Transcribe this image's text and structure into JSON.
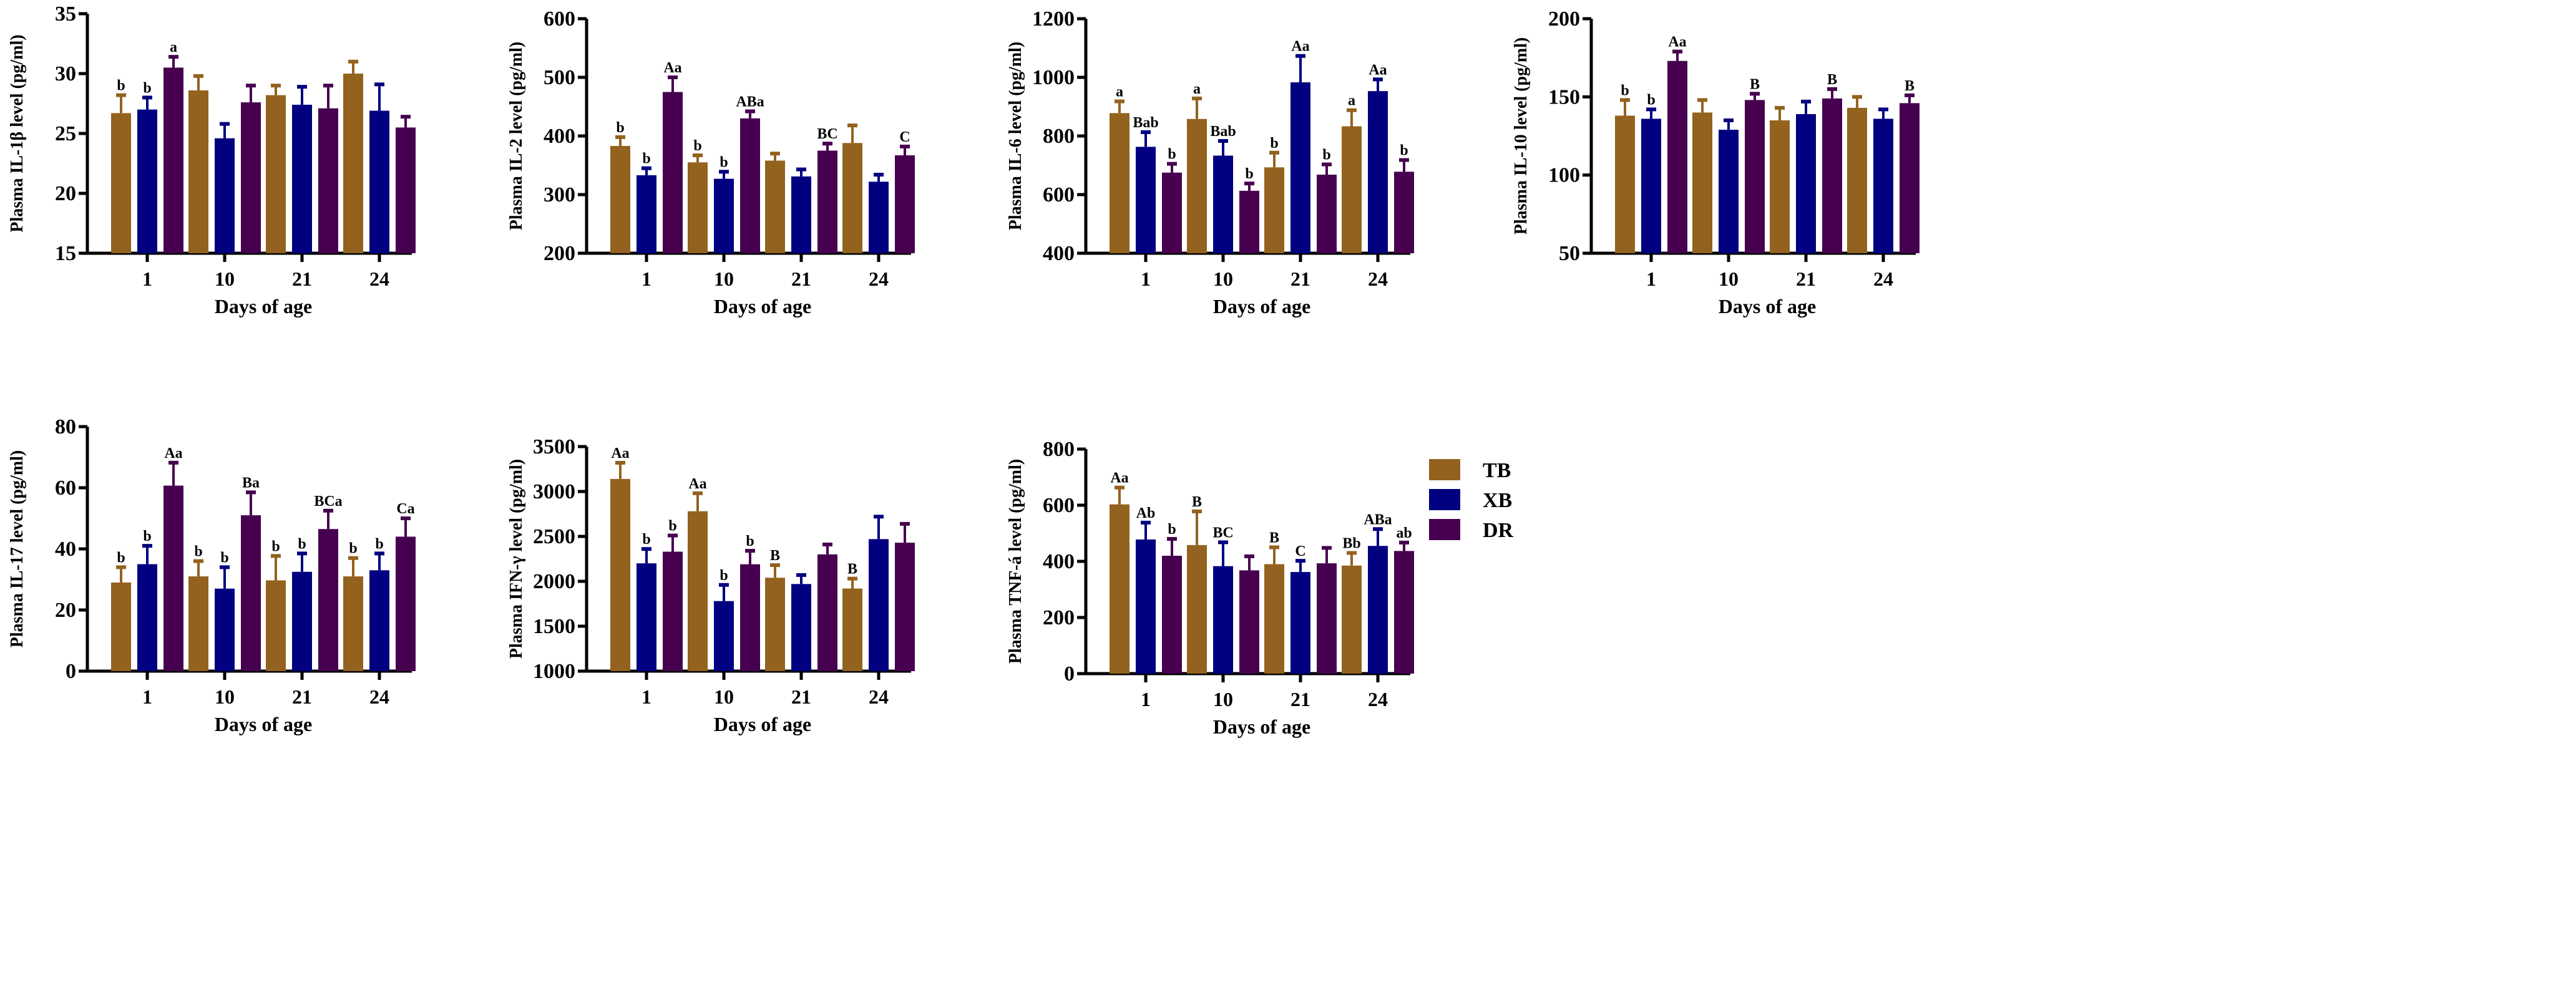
{
  "legend": [
    {
      "name": "TB",
      "color": "#93621e"
    },
    {
      "name": "XB",
      "color": "#000080"
    },
    {
      "name": "DR",
      "color": "#46004f"
    }
  ],
  "chart_data": [
    {
      "type": "bar",
      "ylabel": "Plasma IL-1β level (pg/ml)",
      "xlabel": "Days of age",
      "categories": [
        "1",
        "10",
        "21",
        "24"
      ],
      "ylim": [
        15,
        35
      ],
      "yticks": [
        15,
        20,
        25,
        30,
        35
      ],
      "series": [
        {
          "name": "TB",
          "values": [
            26.7,
            28.6,
            28.2,
            30.0
          ],
          "errors": [
            1.5,
            1.2,
            0.8,
            1.0
          ],
          "labels": [
            "b",
            "",
            "",
            ""
          ]
        },
        {
          "name": "XB",
          "values": [
            27.0,
            24.6,
            27.4,
            26.9
          ],
          "errors": [
            1.0,
            1.2,
            1.5,
            2.2
          ],
          "labels": [
            "b",
            "",
            "",
            ""
          ]
        },
        {
          "name": "DR",
          "values": [
            30.5,
            27.6,
            27.1,
            25.5
          ],
          "errors": [
            0.9,
            1.4,
            1.9,
            0.9
          ],
          "labels": [
            "a",
            "",
            "",
            ""
          ]
        }
      ]
    },
    {
      "type": "bar",
      "ylabel": "Plasma IL-2 level (pg/ml)",
      "xlabel": "Days of age",
      "categories": [
        "1",
        "10",
        "21",
        "24"
      ],
      "ylim": [
        200,
        600
      ],
      "yticks": [
        200,
        300,
        400,
        500,
        600
      ],
      "series": [
        {
          "name": "TB",
          "values": [
            383,
            355,
            358,
            388
          ],
          "errors": [
            15,
            12,
            12,
            30
          ],
          "labels": [
            "b",
            "b",
            "",
            ""
          ]
        },
        {
          "name": "XB",
          "values": [
            333,
            327,
            331,
            322
          ],
          "errors": [
            12,
            12,
            12,
            12
          ],
          "labels": [
            "b",
            "b",
            "",
            ""
          ]
        },
        {
          "name": "DR",
          "values": [
            475,
            430,
            375,
            367
          ],
          "errors": [
            25,
            12,
            12,
            15
          ],
          "labels": [
            "Aa",
            "ABa",
            "BC",
            "C"
          ]
        }
      ]
    },
    {
      "type": "bar",
      "ylabel": "Plasma IL-6 level (pg/ml)",
      "xlabel": "Days of age",
      "categories": [
        "1",
        "10",
        "21",
        "24"
      ],
      "ylim": [
        400,
        1200
      ],
      "yticks": [
        400,
        600,
        800,
        1000,
        1200
      ],
      "series": [
        {
          "name": "TB",
          "values": [
            878,
            858,
            693,
            833
          ],
          "errors": [
            40,
            70,
            50,
            55
          ],
          "labels": [
            "a",
            "a",
            "b",
            "a"
          ]
        },
        {
          "name": "XB",
          "values": [
            763,
            733,
            983,
            953
          ],
          "errors": [
            50,
            50,
            90,
            40
          ],
          "labels": [
            "Bab",
            "Bab",
            "Aa",
            "Aa"
          ]
        },
        {
          "name": "DR",
          "values": [
            675,
            613,
            668,
            678
          ],
          "errors": [
            30,
            25,
            35,
            40
          ],
          "labels": [
            "b",
            "b",
            "b",
            "b"
          ]
        }
      ]
    },
    {
      "type": "bar",
      "ylabel": "Plasma IL-10 level (pg/ml)",
      "xlabel": "Days of age",
      "categories": [
        "1",
        "10",
        "21",
        "24"
      ],
      "ylim": [
        50,
        200
      ],
      "yticks": [
        50,
        100,
        150,
        200
      ],
      "series": [
        {
          "name": "TB",
          "values": [
            138,
            140,
            135,
            143
          ],
          "errors": [
            10,
            8,
            8,
            7
          ],
          "labels": [
            "b",
            "",
            "",
            ""
          ]
        },
        {
          "name": "XB",
          "values": [
            136,
            129,
            139,
            136
          ],
          "errors": [
            6,
            6,
            8,
            6
          ],
          "labels": [
            "b",
            "",
            "",
            ""
          ]
        },
        {
          "name": "DR",
          "values": [
            173,
            148,
            149,
            146
          ],
          "errors": [
            6,
            4,
            6,
            5
          ],
          "labels": [
            "Aa",
            "B",
            "B",
            "B"
          ]
        }
      ]
    },
    {
      "type": "bar",
      "ylabel": "Plasma IL-17 level (pg/ml)",
      "xlabel": "Days of age",
      "categories": [
        "1",
        "10",
        "21",
        "24"
      ],
      "ylim": [
        0,
        80
      ],
      "yticks": [
        0,
        20,
        40,
        60,
        80
      ],
      "series": [
        {
          "name": "TB",
          "values": [
            29,
            31,
            29.7,
            31
          ],
          "errors": [
            5,
            5,
            8,
            6
          ],
          "labels": [
            "b",
            "b",
            "b",
            "b"
          ]
        },
        {
          "name": "XB",
          "values": [
            35,
            27,
            32.5,
            33
          ],
          "errors": [
            6,
            7,
            6,
            5.5
          ],
          "labels": [
            "b",
            "b",
            "b",
            "b"
          ]
        },
        {
          "name": "DR",
          "values": [
            60.7,
            51,
            46.5,
            44
          ],
          "errors": [
            7.5,
            7.5,
            6,
            6
          ],
          "labels": [
            "Aa",
            "Ba",
            "BCa",
            "Ca"
          ]
        }
      ]
    },
    {
      "type": "bar",
      "ylabel": "Plasma IFN-γ level (pg/ml)",
      "xlabel": "Days of age",
      "categories": [
        "1",
        "10",
        "21",
        "24"
      ],
      "ylim": [
        1000,
        3500
      ],
      "yticks": [
        1000,
        1500,
        2000,
        2500,
        3000,
        3500
      ],
      "series": [
        {
          "name": "TB",
          "values": [
            3140,
            2780,
            2040,
            1920
          ],
          "errors": [
            180,
            200,
            140,
            110
          ],
          "labels": [
            "Aa",
            "Aa",
            "B",
            "B"
          ]
        },
        {
          "name": "XB",
          "values": [
            2200,
            1780,
            1970,
            2470
          ],
          "errors": [
            160,
            180,
            100,
            250
          ],
          "labels": [
            "b",
            "b",
            "",
            ""
          ]
        },
        {
          "name": "DR",
          "values": [
            2330,
            2190,
            2300,
            2430
          ],
          "errors": [
            180,
            150,
            110,
            210
          ],
          "labels": [
            "b",
            "b",
            "",
            ""
          ]
        }
      ]
    },
    {
      "type": "bar",
      "ylabel": "Plasma TNF-á level (pg/ml)",
      "xlabel": "Days of age",
      "categories": [
        "1",
        "10",
        "21",
        "24"
      ],
      "ylim": [
        0,
        800
      ],
      "yticks": [
        0,
        200,
        400,
        600,
        800
      ],
      "series": [
        {
          "name": "TB",
          "values": [
            603,
            458,
            390,
            385
          ],
          "errors": [
            60,
            120,
            60,
            45
          ],
          "labels": [
            "Aa",
            "B",
            "B",
            "Bb"
          ]
        },
        {
          "name": "XB",
          "values": [
            478,
            383,
            362,
            455
          ],
          "errors": [
            60,
            85,
            40,
            60
          ],
          "labels": [
            "Ab",
            "BC",
            "C",
            "ABa"
          ]
        },
        {
          "name": "DR",
          "values": [
            420,
            368,
            393,
            437
          ],
          "errors": [
            60,
            50,
            55,
            30
          ],
          "labels": [
            "b",
            "",
            "",
            "ab"
          ]
        }
      ]
    }
  ]
}
